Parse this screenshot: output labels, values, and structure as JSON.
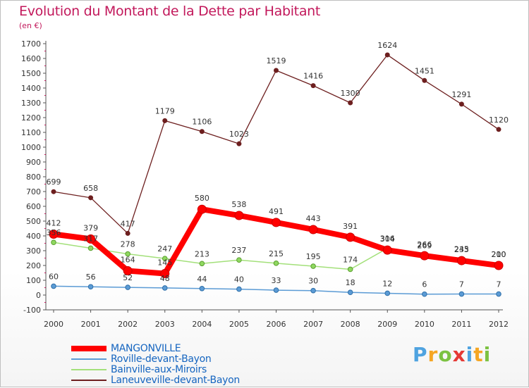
{
  "chart_data": {
    "type": "line",
    "title": "Evolution du Montant de la Dette par Habitant",
    "subtitle": "(en €)",
    "categories": [
      "2000",
      "2001",
      "2002",
      "2003",
      "2004",
      "2005",
      "2006",
      "2007",
      "2008",
      "2009",
      "2010",
      "2011",
      "2012"
    ],
    "ylim": [
      -100,
      1700
    ],
    "yticks": [
      -100,
      0,
      100,
      200,
      300,
      400,
      500,
      600,
      700,
      800,
      900,
      1000,
      1100,
      1200,
      1300,
      1400,
      1500,
      1600,
      1700
    ],
    "grid": false,
    "legend_position": "bottom-left",
    "series": [
      {
        "name": "Laneuveville-devant-Bayon",
        "color": "#6d1f1f",
        "values": [
          699,
          658,
          417,
          1179,
          1106,
          1023,
          1519,
          1416,
          1300,
          1624,
          1451,
          1291,
          1120
        ]
      },
      {
        "name": "Bainville-aux-Miroirs",
        "color": "#a3e07a",
        "values": [
          356,
          317,
          278,
          247,
          213,
          237,
          215,
          195,
          174,
          316,
          269,
          245,
          210
        ]
      },
      {
        "name": "Roville-devant-Bayon",
        "color": "#5b9bd5",
        "values": [
          60,
          56,
          52,
          48,
          44,
          40,
          33,
          30,
          18,
          12,
          6,
          7,
          7
        ]
      },
      {
        "name": "MANGONVILLE",
        "color": "#ff0000",
        "values": [
          412,
          379,
          164,
          145,
          580,
          538,
          491,
          443,
          391,
          304,
          266,
          233,
          200
        ]
      }
    ],
    "legend": [
      "MANGONVILLE",
      "Roville-devant-Bayon",
      "Bainville-aux-Miroirs",
      "Laneuveville-devant-Bayon"
    ]
  },
  "logo_text": {
    "p": "P",
    "r": "r",
    "o": "o",
    "x": "x",
    "i": "i",
    "t": "t",
    "i2": "i"
  },
  "colors": {
    "title": "#c2185b",
    "legend_text": "#1565c0"
  }
}
